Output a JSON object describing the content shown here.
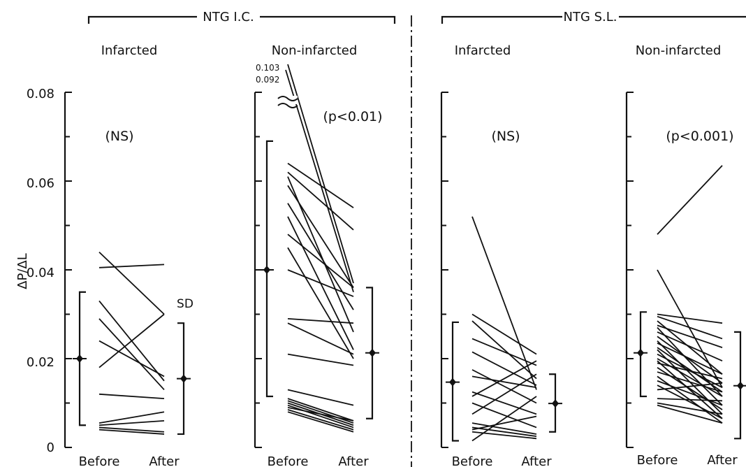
{
  "chart_data": {
    "type": "line",
    "ylabel": "ΔP/ΔL",
    "ylim": [
      0,
      0.08
    ],
    "y_ticks": [
      "0",
      "0.02",
      "0.04",
      "0.06",
      "0.08"
    ],
    "x_labels": [
      "Before",
      "After"
    ],
    "sd_label": "SD",
    "groups": [
      {
        "label": "NTG I.C."
      },
      {
        "label": "NTG S.L."
      }
    ],
    "panels": [
      {
        "group": 0,
        "subtitle": "Infarcted",
        "significance": "(NS)",
        "before_mean": 0.02,
        "before_sd": [
          0.005,
          0.035
        ],
        "after_mean": 0.0155,
        "after_sd": [
          0.003,
          0.028
        ],
        "pairs": [
          [
            0.044,
            0.03
          ],
          [
            0.0405,
            0.0412
          ],
          [
            0.033,
            0.015
          ],
          [
            0.029,
            0.013
          ],
          [
            0.024,
            0.016
          ],
          [
            0.018,
            0.03
          ],
          [
            0.012,
            0.011
          ],
          [
            0.0055,
            0.008
          ],
          [
            0.005,
            0.006
          ],
          [
            0.0045,
            0.0035
          ],
          [
            0.004,
            0.003
          ]
        ]
      },
      {
        "group": 0,
        "subtitle": "Non-infarcted",
        "significance": "(p<0.01)",
        "before_mean": 0.04,
        "before_sd": [
          0.0115,
          0.069
        ],
        "after_mean": 0.0213,
        "after_sd": [
          0.0065,
          0.036
        ],
        "break_values": [
          "0.103",
          "0.092"
        ],
        "pairs": [
          [
            0.103,
            0.037
          ],
          [
            0.092,
            0.035
          ],
          [
            0.064,
            0.054
          ],
          [
            0.062,
            0.049
          ],
          [
            0.061,
            0.026
          ],
          [
            0.059,
            0.036
          ],
          [
            0.055,
            0.031
          ],
          [
            0.052,
            0.022
          ],
          [
            0.048,
            0.036
          ],
          [
            0.045,
            0.02
          ],
          [
            0.04,
            0.034
          ],
          [
            0.029,
            0.028
          ],
          [
            0.028,
            0.021
          ],
          [
            0.021,
            0.0185
          ],
          [
            0.013,
            0.0095
          ],
          [
            0.011,
            0.006
          ],
          [
            0.0105,
            0.0055
          ],
          [
            0.01,
            0.005
          ],
          [
            0.0095,
            0.0045
          ],
          [
            0.009,
            0.006
          ],
          [
            0.0085,
            0.004
          ],
          [
            0.008,
            0.0035
          ]
        ]
      },
      {
        "group": 1,
        "subtitle": "Infarcted",
        "significance": "(NS)",
        "before_mean": 0.0147,
        "before_sd": [
          0.0015,
          0.0282
        ],
        "after_mean": 0.0099,
        "after_sd": [
          0.0035,
          0.0165
        ],
        "pairs": [
          [
            0.052,
            0.013
          ],
          [
            0.03,
            0.021
          ],
          [
            0.0285,
            0.0155
          ],
          [
            0.0245,
            0.0185
          ],
          [
            0.0215,
            0.014
          ],
          [
            0.0175,
            0.01
          ],
          [
            0.016,
            0.0135
          ],
          [
            0.0125,
            0.0075
          ],
          [
            0.0115,
            0.0195
          ],
          [
            0.01,
            0.0045
          ],
          [
            0.0075,
            0.0165
          ],
          [
            0.0055,
            0.003
          ],
          [
            0.0045,
            0.0025
          ],
          [
            0.004,
            0.007
          ],
          [
            0.0035,
            0.002
          ],
          [
            0.0015,
            0.0115
          ]
        ]
      },
      {
        "group": 1,
        "subtitle": "Non-infarcted",
        "significance": "(p<0.001)",
        "before_mean": 0.0213,
        "before_sd": [
          0.0115,
          0.0305
        ],
        "after_mean": 0.0139,
        "after_sd": [
          0.002,
          0.026
        ],
        "pairs": [
          [
            0.048,
            0.0635
          ],
          [
            0.04,
            0.0135
          ],
          [
            0.03,
            0.028
          ],
          [
            0.0295,
            0.0245
          ],
          [
            0.0285,
            0.0165
          ],
          [
            0.0275,
            0.0225
          ],
          [
            0.027,
            0.0115
          ],
          [
            0.026,
            0.0195
          ],
          [
            0.025,
            0.0145
          ],
          [
            0.024,
            0.0095
          ],
          [
            0.0235,
            0.0165
          ],
          [
            0.0225,
            0.0125
          ],
          [
            0.022,
            0.0075
          ],
          [
            0.021,
            0.0135
          ],
          [
            0.02,
            0.0115
          ],
          [
            0.0195,
            0.0065
          ],
          [
            0.019,
            0.0155
          ],
          [
            0.018,
            0.0085
          ],
          [
            0.017,
            0.0125
          ],
          [
            0.016,
            0.0055
          ],
          [
            0.015,
            0.0095
          ],
          [
            0.014,
            0.0065
          ],
          [
            0.013,
            0.0145
          ],
          [
            0.011,
            0.0105
          ],
          [
            0.01,
            0.0075
          ],
          [
            0.0095,
            0.0055
          ]
        ]
      }
    ]
  }
}
